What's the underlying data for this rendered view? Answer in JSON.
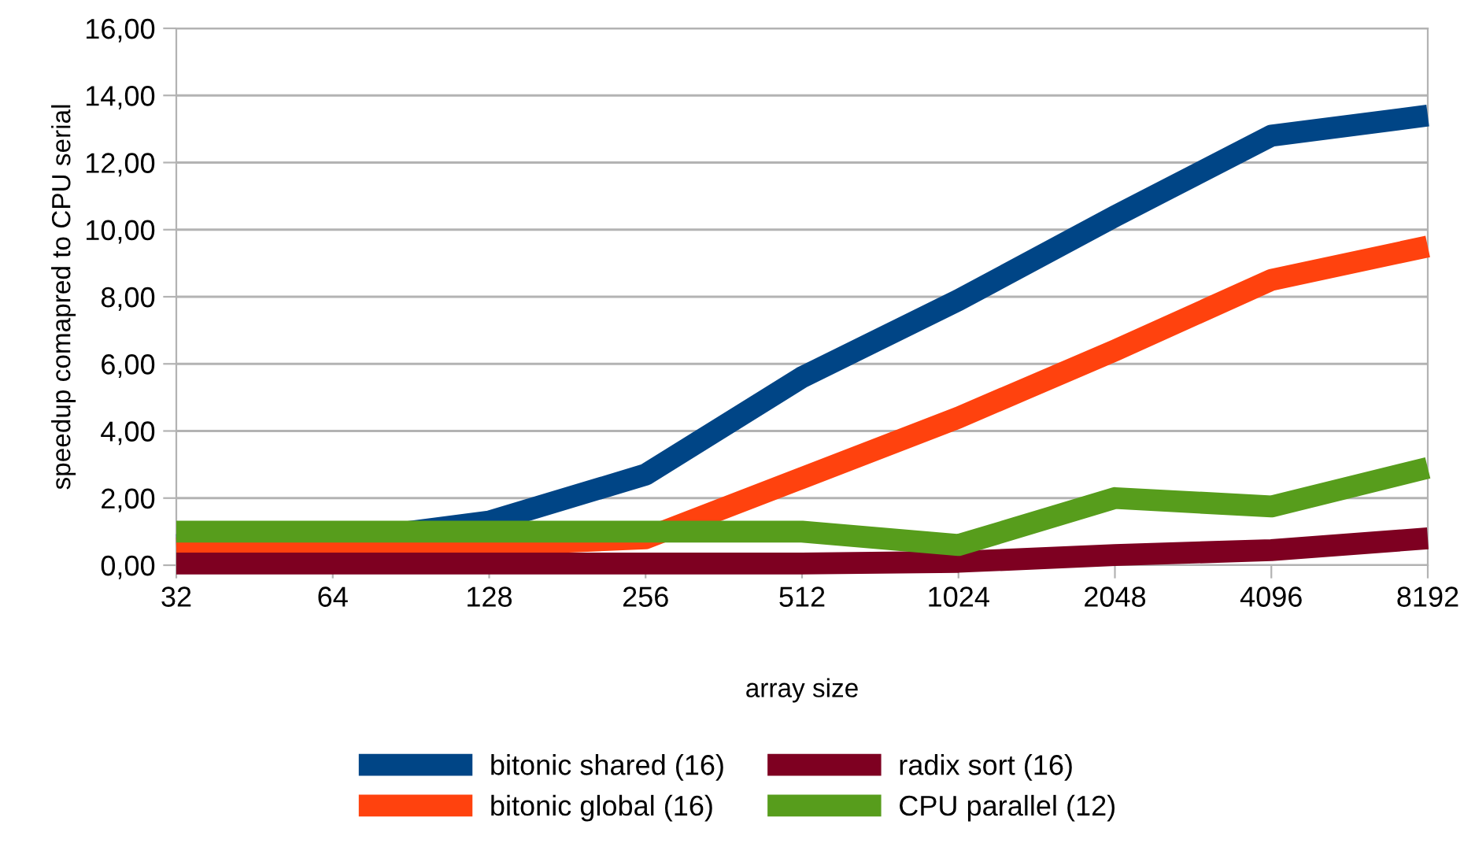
{
  "chart_data": {
    "type": "line",
    "xlabel": "array size",
    "ylabel": "speedup comapred to CPU serial",
    "categories": [
      "32",
      "64",
      "128",
      "256",
      "512",
      "1024",
      "2048",
      "4096",
      "8192"
    ],
    "series": [
      {
        "name": "bitonic shared (16)",
        "color": "#004586",
        "values": [
          0.6,
          0.7,
          1.3,
          2.7,
          5.6,
          7.9,
          10.4,
          12.8,
          13.4
        ]
      },
      {
        "name": "bitonic global (16)",
        "color": "#ff420e",
        "values": [
          0.5,
          0.6,
          0.6,
          0.8,
          2.6,
          4.4,
          6.4,
          8.5,
          9.5
        ]
      },
      {
        "name": "radix sort (16)",
        "color": "#7e0021",
        "values": [
          0.05,
          0.05,
          0.05,
          0.05,
          0.05,
          0.1,
          0.3,
          0.45,
          0.8
        ]
      },
      {
        "name": "CPU parallel (12)",
        "color": "#579d1c",
        "values": [
          1.0,
          1.0,
          1.0,
          1.0,
          1.0,
          0.6,
          2.0,
          1.75,
          2.9
        ]
      }
    ],
    "ylim": [
      0,
      16
    ],
    "yticks": [
      {
        "value": 0,
        "label": "0,00"
      },
      {
        "value": 2,
        "label": "2,00"
      },
      {
        "value": 4,
        "label": "4,00"
      },
      {
        "value": 6,
        "label": "6,00"
      },
      {
        "value": 8,
        "label": "8,00"
      },
      {
        "value": 10,
        "label": "10,00"
      },
      {
        "value": 12,
        "label": "12,00"
      },
      {
        "value": 14,
        "label": "14,00"
      },
      {
        "value": 16,
        "label": "16,00"
      }
    ],
    "grid": "y",
    "legend": "bottom",
    "line_style": "solid",
    "marker": "none"
  }
}
